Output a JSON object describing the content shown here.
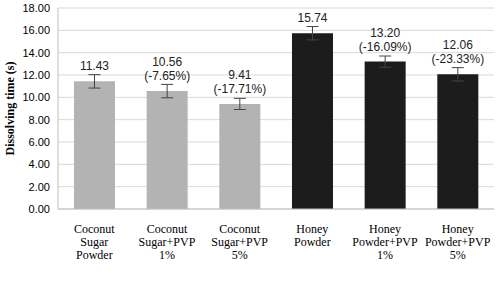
{
  "chart_data": {
    "type": "bar",
    "ylabel": "Dissolving time (s)",
    "categories": [
      "Coconut Sugar Powder",
      "Coconut Sugar+PVP 1%",
      "Coconut Sugar+PVP 5%",
      "Honey Powder",
      "Honey Powder+PVP 1%",
      "Honey Powder+PVP 5%"
    ],
    "values": [
      11.43,
      10.56,
      9.41,
      15.74,
      13.2,
      12.06
    ],
    "value_labels": [
      "11.43",
      "10.56 (-7.65%)",
      "9.41 (-17.71%)",
      "15.74",
      "13.20 (-16.09%)",
      "12.06 (-23.33%)"
    ],
    "errors": [
      0.6,
      0.6,
      0.5,
      0.6,
      0.5,
      0.6
    ],
    "colors": [
      "#b3b3b3",
      "#b3b3b3",
      "#b3b3b3",
      "#1c1c1c",
      "#1c1c1c",
      "#1c1c1c"
    ],
    "ylim": [
      0,
      18
    ],
    "yticks": [
      {
        "value": 0,
        "label": "0.00"
      },
      {
        "value": 2,
        "label": "2.00"
      },
      {
        "value": 4,
        "label": "4.00"
      },
      {
        "value": 6,
        "label": "6.00"
      },
      {
        "value": 8,
        "label": "8.00"
      },
      {
        "value": 10,
        "label": "10.00"
      },
      {
        "value": 12,
        "label": "12.00"
      },
      {
        "value": 14,
        "label": "14.00"
      },
      {
        "value": 16,
        "label": "16.00"
      },
      {
        "value": 18,
        "label": "18.00"
      }
    ],
    "grid": true,
    "data_labels": true
  }
}
